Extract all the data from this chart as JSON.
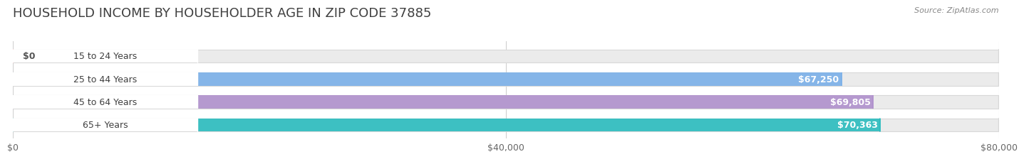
{
  "title": "HOUSEHOLD INCOME BY HOUSEHOLDER AGE IN ZIP CODE 37885",
  "source": "Source: ZipAtlas.com",
  "categories": [
    "15 to 24 Years",
    "25 to 44 Years",
    "45 to 64 Years",
    "65+ Years"
  ],
  "values": [
    0,
    67250,
    69805,
    70363
  ],
  "bar_colors": [
    "#f4a0a0",
    "#7ab0e8",
    "#b090cc",
    "#2abcbe"
  ],
  "bar_cap_colors": [
    "#e87878",
    "#5090d8",
    "#9070b8",
    "#10a0a8"
  ],
  "bar_bg_color": "#ebebeb",
  "bar_bg_edge_color": "#d8d8d8",
  "labels": [
    "$0",
    "$67,250",
    "$69,805",
    "$70,363"
  ],
  "xlim": [
    0,
    80000
  ],
  "xticks": [
    0,
    40000,
    80000
  ],
  "xtick_labels": [
    "$0",
    "$40,000",
    "$80,000"
  ],
  "background_color": "#ffffff",
  "title_fontsize": 13,
  "source_fontsize": 8,
  "label_fontsize": 9,
  "category_fontsize": 9,
  "tick_fontsize": 9,
  "grid_color": "#d0d0d0"
}
